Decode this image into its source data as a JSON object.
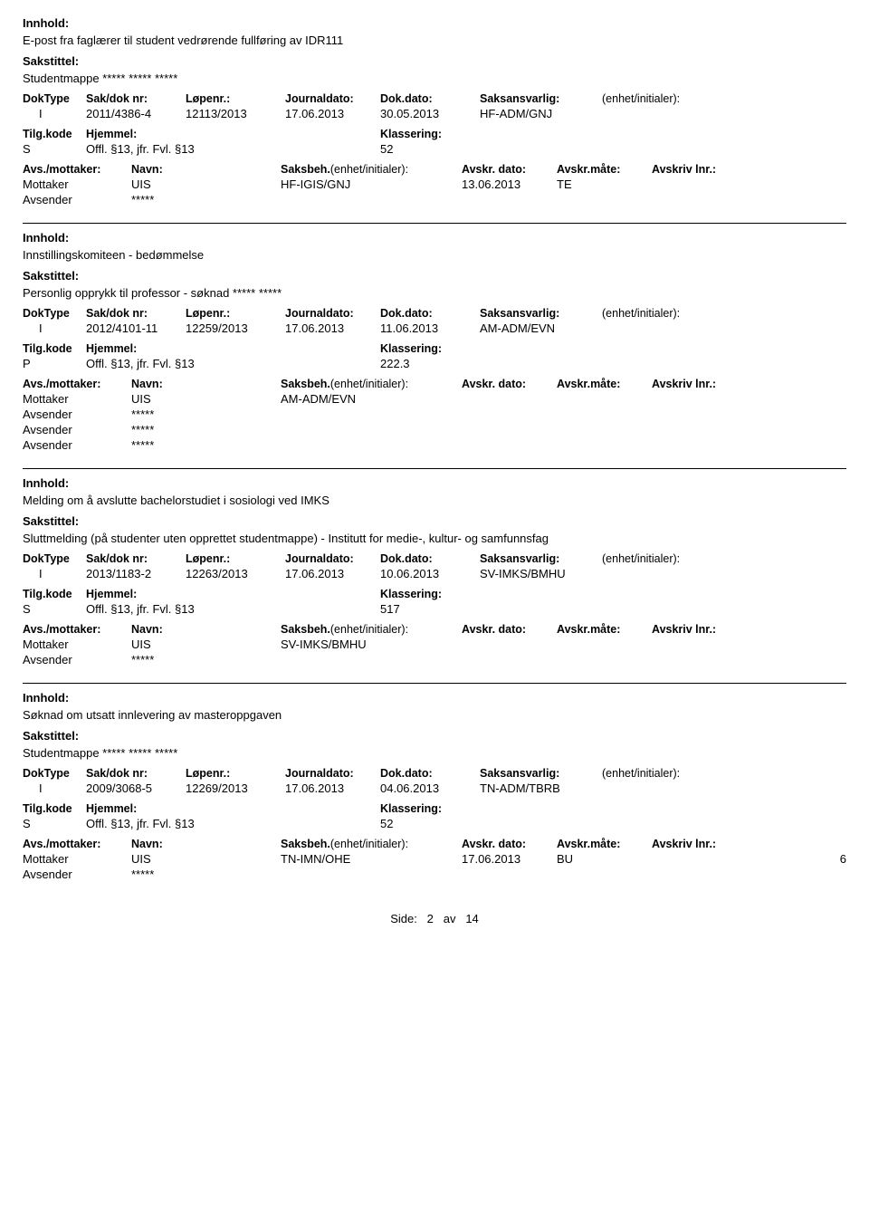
{
  "labels": {
    "innhold": "Innhold:",
    "sakstittel": "Sakstittel:",
    "doktype": "DokType",
    "sakdoknr": "Sak/dok nr:",
    "lopenr": "Løpenr.:",
    "journaldato": "Journaldato:",
    "dokdato": "Dok.dato:",
    "saksansvarlig": "Saksansvarlig:",
    "enhet_init": "(enhet/initialer):",
    "tilgkode": "Tilg.kode",
    "hjemmel": "Hjemmel:",
    "klassering": "Klassering:",
    "avs_mottaker": "Avs./mottaker:",
    "navn": "Navn:",
    "saksbeh": "Saksbeh.",
    "saksbeh_enhet": "(enhet/initialer):",
    "avskr_dato": "Avskr. dato:",
    "avskr_mate": "Avskr.måte:",
    "avskriv_lnr": "Avskriv lnr.:",
    "mottaker": "Mottaker",
    "avsender": "Avsender"
  },
  "entries": [
    {
      "innhold": "E-post fra faglærer til student vedrørende fullføring av IDR111",
      "sakstittel": "Studentmappe ***** ***** *****",
      "doktype": "I",
      "sakdoknr": "2011/4386-4",
      "lopenr": "12113/2013",
      "journaldato": "17.06.2013",
      "dokdato": "30.05.2013",
      "saksansvarlig": "HF-ADM/GNJ",
      "tilgkode": "S",
      "hjemmel": "Offl. §13, jfr. Fvl. §13",
      "klassering": "52",
      "parties": [
        {
          "role": "Mottaker",
          "navn": "UIS",
          "saksbeh": "HF-IGIS/GNJ",
          "avskr_dato": "13.06.2013",
          "avskr_mate": "TE",
          "avlnr": ""
        },
        {
          "role": "Avsender",
          "navn": "*****",
          "saksbeh": "",
          "avskr_dato": "",
          "avskr_mate": "",
          "avlnr": ""
        }
      ]
    },
    {
      "innhold": "Innstillingskomiteen - bedømmelse",
      "sakstittel": "Personlig opprykk til professor - søknad ***** *****",
      "doktype": "I",
      "sakdoknr": "2012/4101-11",
      "lopenr": "12259/2013",
      "journaldato": "17.06.2013",
      "dokdato": "11.06.2013",
      "saksansvarlig": "AM-ADM/EVN",
      "tilgkode": "P",
      "hjemmel": "Offl. §13, jfr. Fvl. §13",
      "klassering": "222.3",
      "parties": [
        {
          "role": "Mottaker",
          "navn": "UIS",
          "saksbeh": "AM-ADM/EVN",
          "avskr_dato": "",
          "avskr_mate": "",
          "avlnr": ""
        },
        {
          "role": "Avsender",
          "navn": "*****",
          "saksbeh": "",
          "avskr_dato": "",
          "avskr_mate": "",
          "avlnr": ""
        },
        {
          "role": "Avsender",
          "navn": "*****",
          "saksbeh": "",
          "avskr_dato": "",
          "avskr_mate": "",
          "avlnr": ""
        },
        {
          "role": "Avsender",
          "navn": "*****",
          "saksbeh": "",
          "avskr_dato": "",
          "avskr_mate": "",
          "avlnr": ""
        }
      ]
    },
    {
      "innhold": "Melding om å avslutte bachelorstudiet i sosiologi ved IMKS",
      "sakstittel": "Sluttmelding (på studenter uten opprettet studentmappe) - Institutt for medie-, kultur- og samfunnsfag",
      "doktype": "I",
      "sakdoknr": "2013/1183-2",
      "lopenr": "12263/2013",
      "journaldato": "17.06.2013",
      "dokdato": "10.06.2013",
      "saksansvarlig": "SV-IMKS/BMHU",
      "tilgkode": "S",
      "hjemmel": "Offl. §13, jfr. Fvl. §13",
      "klassering": "517",
      "parties": [
        {
          "role": "Mottaker",
          "navn": "UIS",
          "saksbeh": "SV-IMKS/BMHU",
          "avskr_dato": "",
          "avskr_mate": "",
          "avlnr": ""
        },
        {
          "role": "Avsender",
          "navn": "*****",
          "saksbeh": "",
          "avskr_dato": "",
          "avskr_mate": "",
          "avlnr": ""
        }
      ]
    },
    {
      "innhold": "Søknad om utsatt innlevering av masteroppgaven",
      "sakstittel": "Studentmappe ***** ***** *****",
      "doktype": "I",
      "sakdoknr": "2009/3068-5",
      "lopenr": "12269/2013",
      "journaldato": "17.06.2013",
      "dokdato": "04.06.2013",
      "saksansvarlig": "TN-ADM/TBRB",
      "tilgkode": "S",
      "hjemmel": "Offl. §13, jfr. Fvl. §13",
      "klassering": "52",
      "parties": [
        {
          "role": "Mottaker",
          "navn": "UIS",
          "saksbeh": "TN-IMN/OHE",
          "avskr_dato": "17.06.2013",
          "avskr_mate": "BU",
          "avlnr": "6"
        },
        {
          "role": "Avsender",
          "navn": "*****",
          "saksbeh": "",
          "avskr_dato": "",
          "avskr_mate": "",
          "avlnr": ""
        }
      ]
    }
  ],
  "footer": {
    "side_label": "Side:",
    "page_cur": "2",
    "av_label": "av",
    "page_tot": "14"
  }
}
